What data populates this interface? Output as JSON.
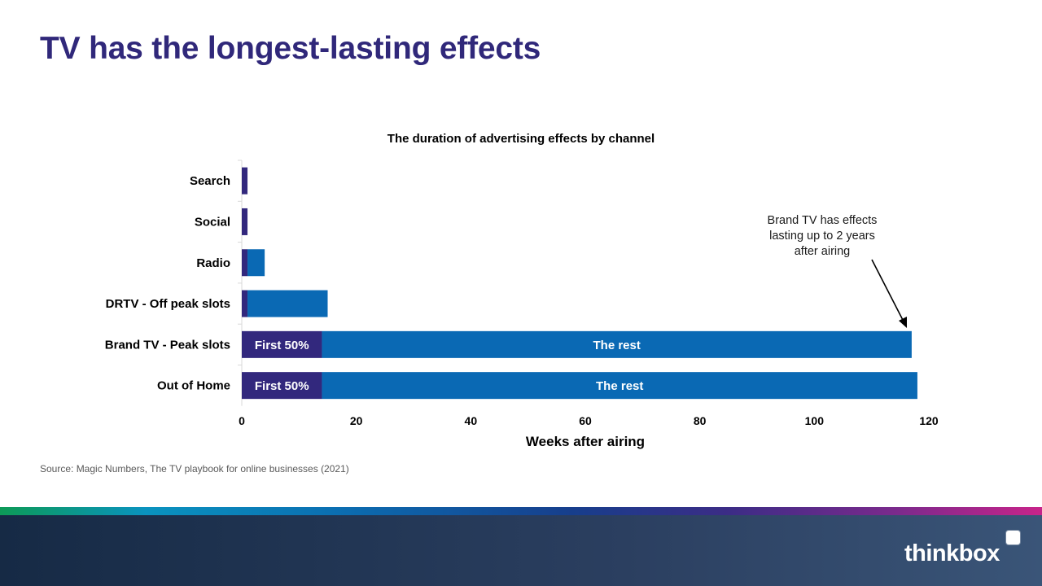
{
  "slide": {
    "title": "TV has the longest-lasting effects",
    "source": "Source: Magic Numbers, The TV playbook for online businesses (2021)",
    "annotation": "Brand TV has effects\nlasting up to 2 years\nafter airing",
    "brand": "thinkbox"
  },
  "chart_data": {
    "type": "bar",
    "orientation": "horizontal",
    "stacked": true,
    "title": "The duration of advertising effects by channel",
    "xlabel": "Weeks after airing",
    "ylabel": "",
    "xlim": [
      0,
      120
    ],
    "xticks": [
      0,
      20,
      40,
      60,
      80,
      100,
      120
    ],
    "categories": [
      "Search",
      "Social",
      "Radio",
      "DRTV - Off peak slots",
      "Brand TV - Peak slots",
      "Out of Home"
    ],
    "series": [
      {
        "name": "First 50%",
        "color": "#32287d",
        "values": [
          1,
          1,
          1,
          1,
          14,
          14
        ],
        "labels": [
          "",
          "",
          "",
          "",
          "First 50%",
          "First 50%"
        ]
      },
      {
        "name": "The rest",
        "color": "#0a69b4",
        "values": [
          0,
          0,
          3,
          14,
          103,
          104
        ],
        "labels": [
          "",
          "",
          "",
          "",
          "The rest",
          "The rest"
        ]
      }
    ],
    "legend": "none",
    "grid": false
  }
}
